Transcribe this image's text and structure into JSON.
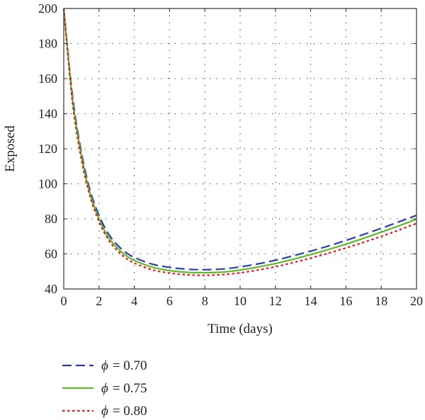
{
  "chart_data": {
    "type": "line",
    "title": "",
    "xlabel": "Time (days)",
    "ylabel": "Exposed",
    "xlim": [
      0,
      20
    ],
    "ylim": [
      40,
      200
    ],
    "xticks": [
      0,
      2,
      4,
      6,
      8,
      10,
      12,
      14,
      16,
      18,
      20
    ],
    "yticks": [
      40,
      60,
      80,
      100,
      120,
      140,
      160,
      180,
      200
    ],
    "grid": "dotted",
    "legend_position": "bottom-left",
    "x": [
      0,
      0.5,
      1,
      1.5,
      2,
      2.5,
      3,
      3.5,
      4,
      5,
      6,
      7,
      8,
      9,
      10,
      11,
      12,
      13,
      14,
      15,
      16,
      17,
      18,
      19,
      20
    ],
    "series": [
      {
        "name": "ϕ = 0.70",
        "symbol": "ϕ",
        "value_text": "= 0.70",
        "color": "#2b3fa0",
        "dash": "dashed",
        "values": [
          200,
          150,
          118,
          96,
          82,
          72,
          65.5,
          61,
          58,
          54.2,
          52.3,
          51.3,
          51,
          51.4,
          52.6,
          54.3,
          56.4,
          58.9,
          61.6,
          64.5,
          67.7,
          71.1,
          74.6,
          78.3,
          82
        ]
      },
      {
        "name": "ϕ = 0.75",
        "symbol": "ϕ",
        "value_text": "= 0.75",
        "color": "#5cb82e",
        "dash": "solid",
        "values": [
          200,
          148,
          116,
          94,
          80,
          70,
          63.8,
          59.3,
          56.3,
          52.5,
          50.5,
          49.5,
          49.3,
          49.6,
          50.8,
          52.5,
          54.5,
          56.9,
          59.6,
          62.5,
          65.6,
          68.9,
          72.4,
          76,
          79.8
        ]
      },
      {
        "name": "ϕ = 0.80",
        "symbol": "ϕ",
        "value_text": "= 0.80",
        "color": "#e01b1b",
        "dash": "dotted",
        "values": [
          200,
          146,
          114,
          92.5,
          78.5,
          68.5,
          62.3,
          57.8,
          54.8,
          51,
          49.1,
          48.1,
          47.8,
          48.2,
          49.2,
          50.8,
          52.7,
          55,
          57.6,
          60.4,
          63.4,
          66.6,
          70,
          73.6,
          77.4
        ]
      }
    ]
  }
}
